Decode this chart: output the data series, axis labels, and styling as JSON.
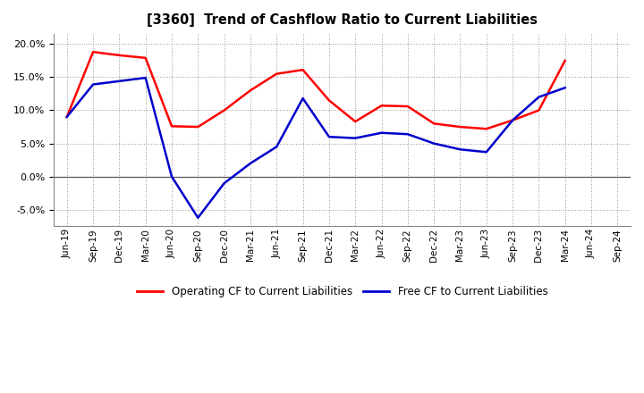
{
  "title": "[3360]  Trend of Cashflow Ratio to Current Liabilities",
  "x_labels": [
    "Jun-19",
    "Sep-19",
    "Dec-19",
    "Mar-20",
    "Jun-20",
    "Sep-20",
    "Dec-20",
    "Mar-21",
    "Jun-21",
    "Sep-21",
    "Dec-21",
    "Mar-22",
    "Jun-22",
    "Sep-22",
    "Dec-22",
    "Mar-23",
    "Jun-23",
    "Sep-23",
    "Dec-23",
    "Mar-24",
    "Jun-24",
    "Sep-24"
  ],
  "operating_cf": [
    9.0,
    18.8,
    18.3,
    17.9,
    7.6,
    7.5,
    10.0,
    13.0,
    15.5,
    16.1,
    11.5,
    8.3,
    10.7,
    10.6,
    8.0,
    7.5,
    7.2,
    8.5,
    10.0,
    17.5,
    null,
    null
  ],
  "free_cf": [
    9.0,
    13.9,
    14.4,
    14.9,
    0.0,
    -6.2,
    -1.0,
    2.0,
    4.5,
    11.8,
    6.0,
    5.8,
    6.6,
    6.4,
    5.0,
    4.1,
    3.7,
    8.5,
    12.0,
    13.4,
    null,
    null
  ],
  "ylim": [
    -7.5,
    21.5
  ],
  "yticks": [
    -5.0,
    0.0,
    5.0,
    10.0,
    15.0,
    20.0
  ],
  "operating_color": "#ff0000",
  "free_color": "#0000cd",
  "background_color": "#ffffff",
  "plot_bg_color": "#ffffff",
  "grid_color": "#999999"
}
